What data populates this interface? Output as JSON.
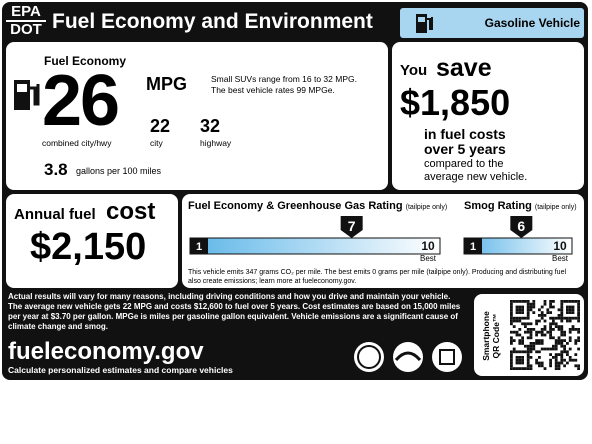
{
  "header": {
    "agency_top": "EPA",
    "agency_bottom": "DOT",
    "title": "Fuel Economy and Environment",
    "vehicle_type": "Gasoline Vehicle"
  },
  "fuel_economy": {
    "label": "Fuel Economy",
    "combined": "26",
    "unit": "MPG",
    "combined_label": "combined city/hwy",
    "city": "22",
    "city_label": "city",
    "highway": "32",
    "highway_label": "highway",
    "range_note": "Small SUVs range from 16 to 32 MPG.",
    "best_note": "The best vehicle rates 99 MPGe.",
    "gallons": "3.8",
    "gallons_label": "gallons per 100 miles"
  },
  "savings": {
    "you": "You",
    "save": "save",
    "amount": "$1,850",
    "line1": "in fuel costs",
    "line2": "over 5 years",
    "line3": "compared to the",
    "line4": "average new vehicle."
  },
  "annual_cost": {
    "label": "Annual fuel",
    "label_big": "cost",
    "amount": "$2,150"
  },
  "ghg_rating": {
    "title": "Fuel Economy & Greenhouse Gas Rating",
    "qualifier": "(tailpipe only)",
    "min": 1,
    "max": 10,
    "value": 7,
    "best": "Best"
  },
  "smog_rating": {
    "title": "Smog Rating",
    "qualifier": "(tailpipe only)",
    "min": 1,
    "max": 10,
    "value": 6,
    "best": "Best"
  },
  "emissions_note": "This vehicle emits 347 grams CO₂ per mile. The best emits 0 grams per mile (tailpipe only). Producing and distributing fuel also create emissions; learn more at fueleconomy.gov.",
  "disclaimer": "Actual results will vary for many reasons, including driving conditions and how you drive and maintain your vehicle. The average new vehicle gets 22 MPG and costs $12,600 to fuel over 5 years. Cost estimates are based on 15,000 miles per year at $3.70 per gallon. MPGe is miles per gasoline gallon equivalent. Vehicle emissions are a significant cause of climate change and smog.",
  "footer": {
    "site": "fueleconomy.gov",
    "tagline": "Calculate personalized estimates and compare vehicles",
    "qr_line1": "Smartphone",
    "qr_line2": "QR Code™"
  }
}
